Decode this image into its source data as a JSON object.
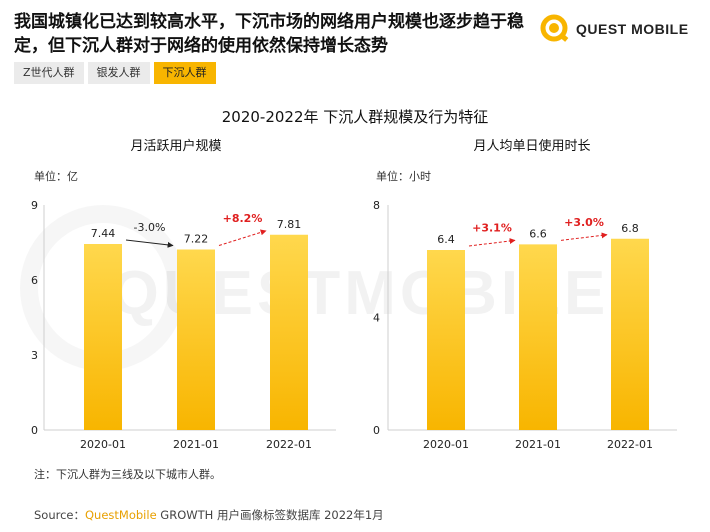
{
  "headline": "我国城镇化已达到较高水平，下沉市场的网络用户规模也逐步趋于稳定，但下沉人群对于网络的使用依然保持增长态势",
  "logo": {
    "text": "QUEST MOBILE",
    "watermark": "QUESTMOBILE"
  },
  "tabs": [
    {
      "label": "Z世代人群",
      "active": false
    },
    {
      "label": "银发人群",
      "active": false
    },
    {
      "label": "下沉人群",
      "active": true
    }
  ],
  "title": "2020-2022年 下沉人群规模及行为特征",
  "colors": {
    "bar": "#f8b500",
    "bar_light": "#ffd84d",
    "negative_arrow": "#222222",
    "positive_arrow": "#e02020",
    "accent": "#f8b500"
  },
  "chart_data": [
    {
      "type": "bar",
      "title": "月活跃用户规模",
      "unit": "单位：亿",
      "categories": [
        "2020-01",
        "2021-01",
        "2022-01"
      ],
      "values": [
        7.44,
        7.22,
        7.81
      ],
      "value_labels": [
        "7.44",
        "7.22",
        "7.81"
      ],
      "ylim": [
        0,
        9
      ],
      "yticks": [
        "0",
        "3",
        "6",
        "9"
      ],
      "ytick_values": [
        0,
        3,
        6,
        9
      ],
      "changes": [
        {
          "from": 0,
          "to": 1,
          "label": "-3.0%",
          "direction": "down"
        },
        {
          "from": 1,
          "to": 2,
          "label": "+8.2%",
          "direction": "up"
        }
      ]
    },
    {
      "type": "bar",
      "title": "月人均单日使用时长",
      "unit": "单位：小时",
      "categories": [
        "2020-01",
        "2021-01",
        "2022-01"
      ],
      "values": [
        6.4,
        6.6,
        6.8
      ],
      "value_labels": [
        "6.4",
        "6.6",
        "6.8"
      ],
      "ylim": [
        0,
        8
      ],
      "yticks": [
        "0",
        "4",
        "8"
      ],
      "ytick_values": [
        0,
        4,
        8
      ],
      "changes": [
        {
          "from": 0,
          "to": 1,
          "label": "+3.1%",
          "direction": "up"
        },
        {
          "from": 1,
          "to": 2,
          "label": "+3.0%",
          "direction": "up"
        }
      ]
    }
  ],
  "note": "注：下沉人群为三线及以下城市人群。",
  "source": {
    "prefix": "Source：",
    "brand": "QuestMobile",
    "rest": " GROWTH 用户画像标签数据库 2022年1月"
  }
}
